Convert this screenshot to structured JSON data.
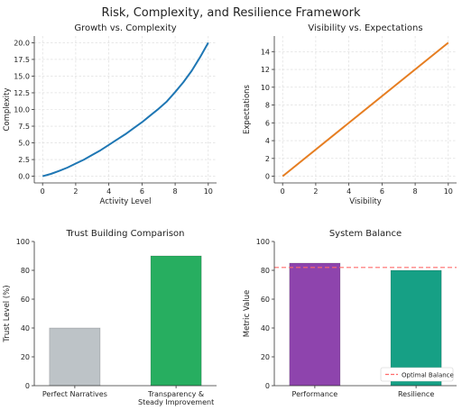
{
  "figure": {
    "suptitle": "Risk, Complexity, and Resilience Framework"
  },
  "chart_data": [
    {
      "type": "line",
      "title": "Growth vs. Complexity",
      "xlabel": "Activity Level",
      "ylabel": "Complexity",
      "xlim": [
        -0.5,
        10.5
      ],
      "ylim": [
        -1.0,
        21.0
      ],
      "xticks": [
        "0",
        "2",
        "4",
        "6",
        "8",
        "10"
      ],
      "yticks": [
        "0.0",
        "2.5",
        "5.0",
        "7.5",
        "10.0",
        "12.5",
        "15.0",
        "17.5",
        "20.0"
      ],
      "grid": true,
      "series": [
        {
          "color": "#1f77b4",
          "x": [
            0,
            0.5,
            1,
            1.5,
            2,
            2.5,
            3,
            3.5,
            4,
            4.5,
            5,
            5.5,
            6,
            6.5,
            7,
            7.5,
            8,
            8.5,
            9,
            9.5,
            10
          ],
          "y": [
            0.0,
            0.35,
            0.8,
            1.3,
            1.9,
            2.5,
            3.2,
            3.9,
            4.7,
            5.5,
            6.3,
            7.2,
            8.1,
            9.1,
            10.1,
            11.2,
            12.6,
            14.1,
            15.8,
            17.8,
            20.0
          ]
        }
      ]
    },
    {
      "type": "line",
      "title": "Visibility vs. Expectations",
      "xlabel": "Visibility",
      "ylabel": "Expectations",
      "xlim": [
        -0.5,
        10.5
      ],
      "ylim": [
        -0.75,
        15.75
      ],
      "xticks": [
        "0",
        "2",
        "4",
        "6",
        "8",
        "10"
      ],
      "yticks": [
        "0",
        "2",
        "4",
        "6",
        "8",
        "10",
        "12",
        "14"
      ],
      "grid": true,
      "series": [
        {
          "color": "#e67e22",
          "x": [
            0,
            10
          ],
          "y": [
            0,
            15
          ]
        }
      ]
    },
    {
      "type": "bar",
      "title": "Trust Building Comparison",
      "xlabel": "",
      "ylabel": "Trust Level (%)",
      "ylim": [
        0,
        100
      ],
      "yticks": [
        "0",
        "20",
        "40",
        "60",
        "80",
        "100"
      ],
      "categories": [
        "Perfect Narratives",
        "Transparency & Steady Improvement"
      ],
      "category_lines": [
        [
          "Perfect Narratives"
        ],
        [
          "Transparency &",
          "Steady Improvement"
        ]
      ],
      "values": [
        40,
        90
      ],
      "colors": [
        "#bdc3c7",
        "#27ae60"
      ],
      "grid": false
    },
    {
      "type": "bar",
      "title": "System Balance",
      "xlabel": "",
      "ylabel": "Metric Value",
      "ylim": [
        0,
        100
      ],
      "yticks": [
        "0",
        "20",
        "40",
        "60",
        "80",
        "100"
      ],
      "categories": [
        "Performance",
        "Resilience"
      ],
      "category_lines": [
        [
          "Performance"
        ],
        [
          "Resilience"
        ]
      ],
      "values": [
        85,
        80
      ],
      "colors": [
        "#8e44ad",
        "#16a085"
      ],
      "reference_line": {
        "value": 82,
        "label": "Optimal Balance",
        "color": "#ff6b6b",
        "style": "dashed"
      },
      "legend": "bottom-right",
      "grid": false
    }
  ]
}
